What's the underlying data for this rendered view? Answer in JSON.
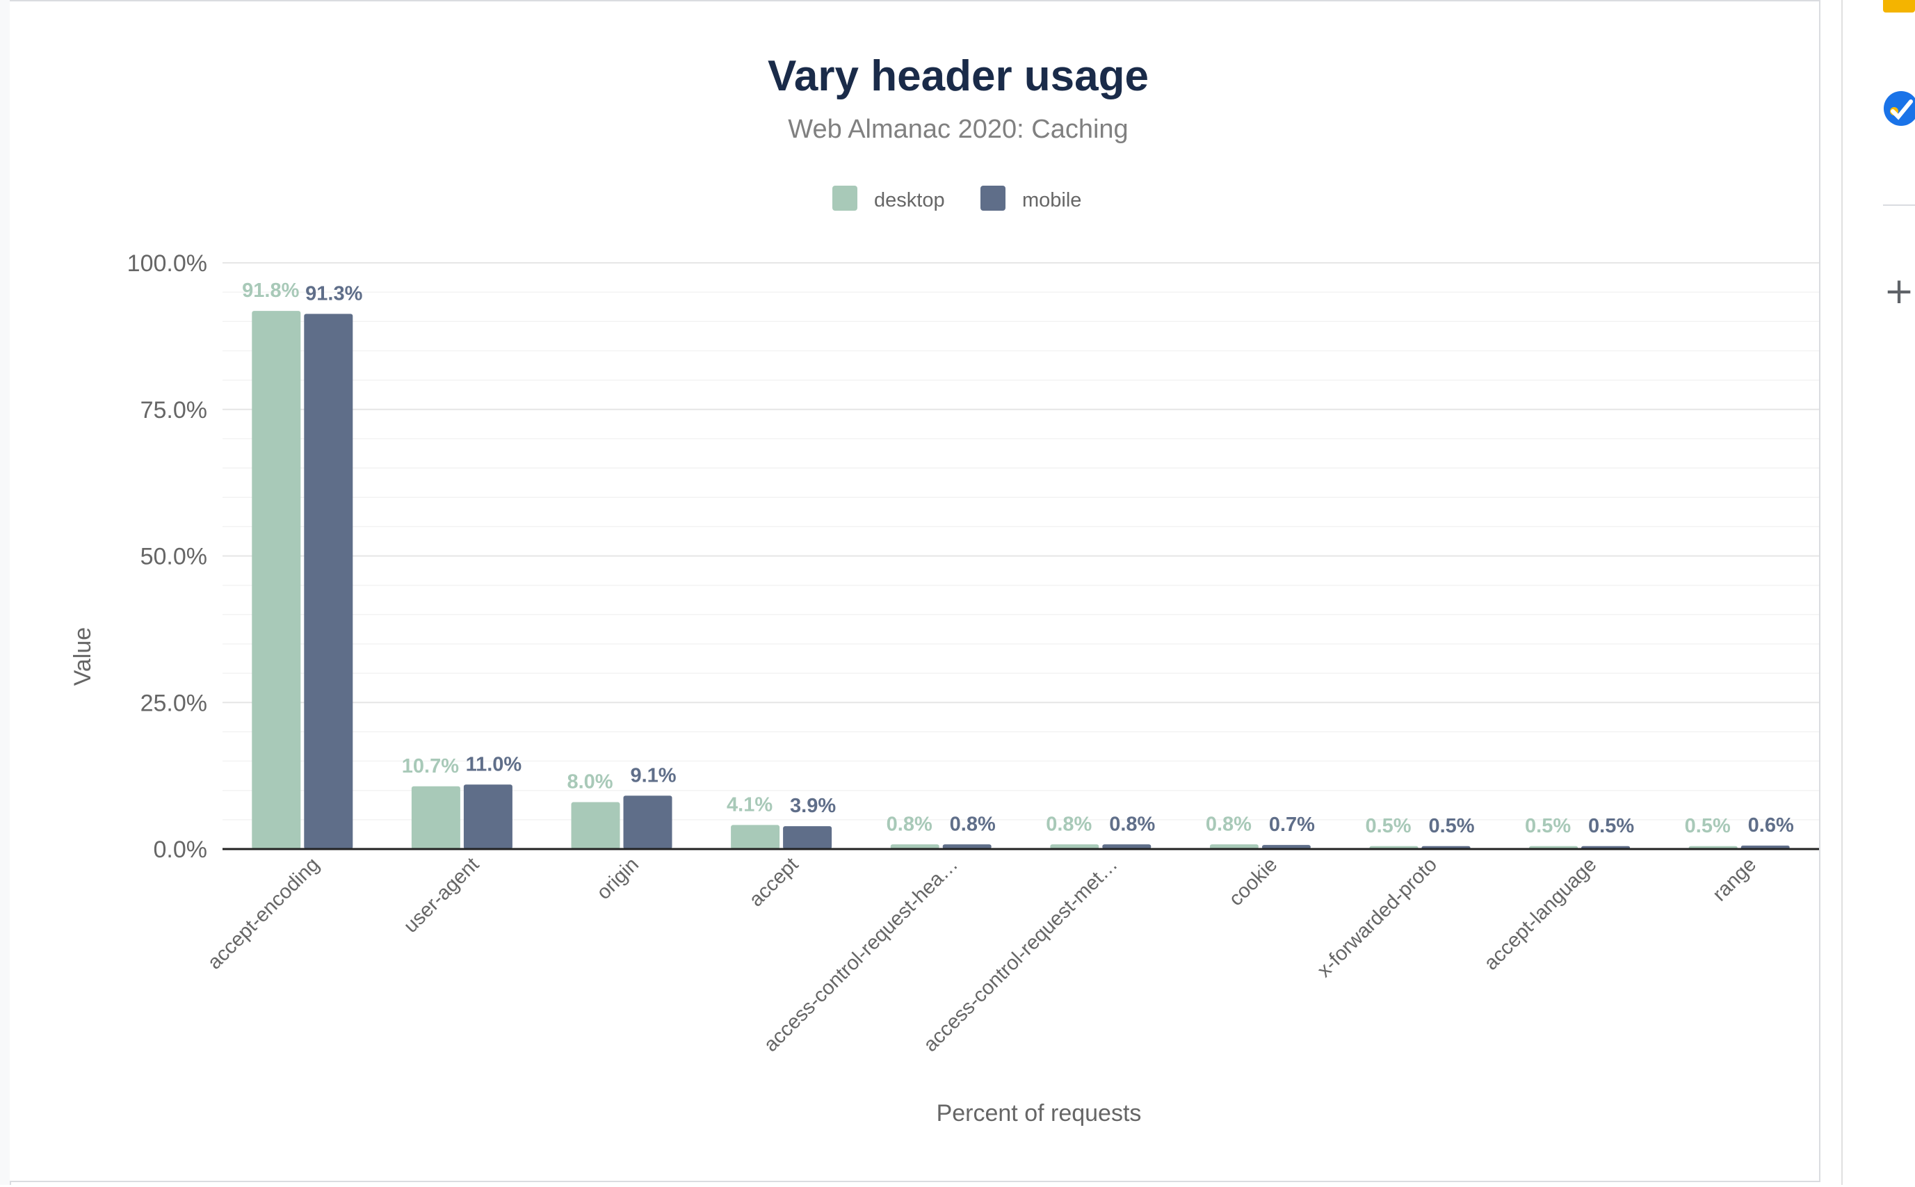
{
  "chart_data": {
    "type": "bar",
    "title": "Vary header usage",
    "subtitle": "Web Almanac 2020: Caching",
    "xlabel": "Percent of requests",
    "ylabel": "Value",
    "ylim": [
      0,
      100
    ],
    "yticks": [
      "0.0%",
      "25.0%",
      "50.0%",
      "75.0%",
      "100.0%"
    ],
    "ytick_values": [
      0,
      25,
      50,
      75,
      100
    ],
    "categories": [
      "accept-encoding",
      "user-agent",
      "origin",
      "accept",
      "access-control-request-hea…",
      "access-control-request-met…",
      "cookie",
      "x-forwarded-proto",
      "accept-language",
      "range"
    ],
    "legend_position": "top-center",
    "grid": true,
    "series": [
      {
        "name": "desktop",
        "color": "#a8c9b8",
        "values": [
          91.8,
          10.7,
          8.0,
          4.1,
          0.8,
          0.8,
          0.8,
          0.5,
          0.5,
          0.5
        ],
        "labels": [
          "91.8%",
          "10.7%",
          "8.0%",
          "4.1%",
          "0.8%",
          "0.8%",
          "0.8%",
          "0.5%",
          "0.5%",
          "0.5%"
        ]
      },
      {
        "name": "mobile",
        "color": "#5f6e89",
        "values": [
          91.3,
          11.0,
          9.1,
          3.9,
          0.8,
          0.8,
          0.7,
          0.5,
          0.5,
          0.6
        ],
        "labels": [
          "91.3%",
          "11.0%",
          "9.1%",
          "3.9%",
          "0.8%",
          "0.8%",
          "0.7%",
          "0.5%",
          "0.5%",
          "0.6%"
        ]
      }
    ]
  },
  "side_panel": {
    "icons": [
      "keep-icon",
      "tasks-icon",
      "add-icon"
    ]
  }
}
